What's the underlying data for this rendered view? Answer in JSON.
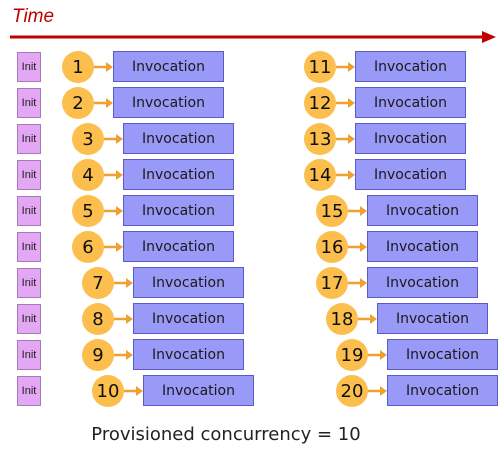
{
  "header": {
    "title": "Time"
  },
  "init_label": "Init",
  "invocation_label": "Invocation",
  "caption": "Provisioned concurrency = 10",
  "colors": {
    "timeline": "#c00000",
    "init_fill": "#e3a7f4",
    "circle_fill": "#fcbf4e",
    "invocation_fill": "#9999f7",
    "arrow": "#f0a030"
  },
  "left_column": [
    {
      "number": "1"
    },
    {
      "number": "2"
    },
    {
      "number": "3"
    },
    {
      "number": "4"
    },
    {
      "number": "5"
    },
    {
      "number": "6"
    },
    {
      "number": "7"
    },
    {
      "number": "8"
    },
    {
      "number": "9"
    },
    {
      "number": "10"
    }
  ],
  "right_column": [
    {
      "number": "11"
    },
    {
      "number": "12"
    },
    {
      "number": "13"
    },
    {
      "number": "14"
    },
    {
      "number": "15"
    },
    {
      "number": "16"
    },
    {
      "number": "17"
    },
    {
      "number": "18"
    },
    {
      "number": "19"
    },
    {
      "number": "20"
    }
  ]
}
